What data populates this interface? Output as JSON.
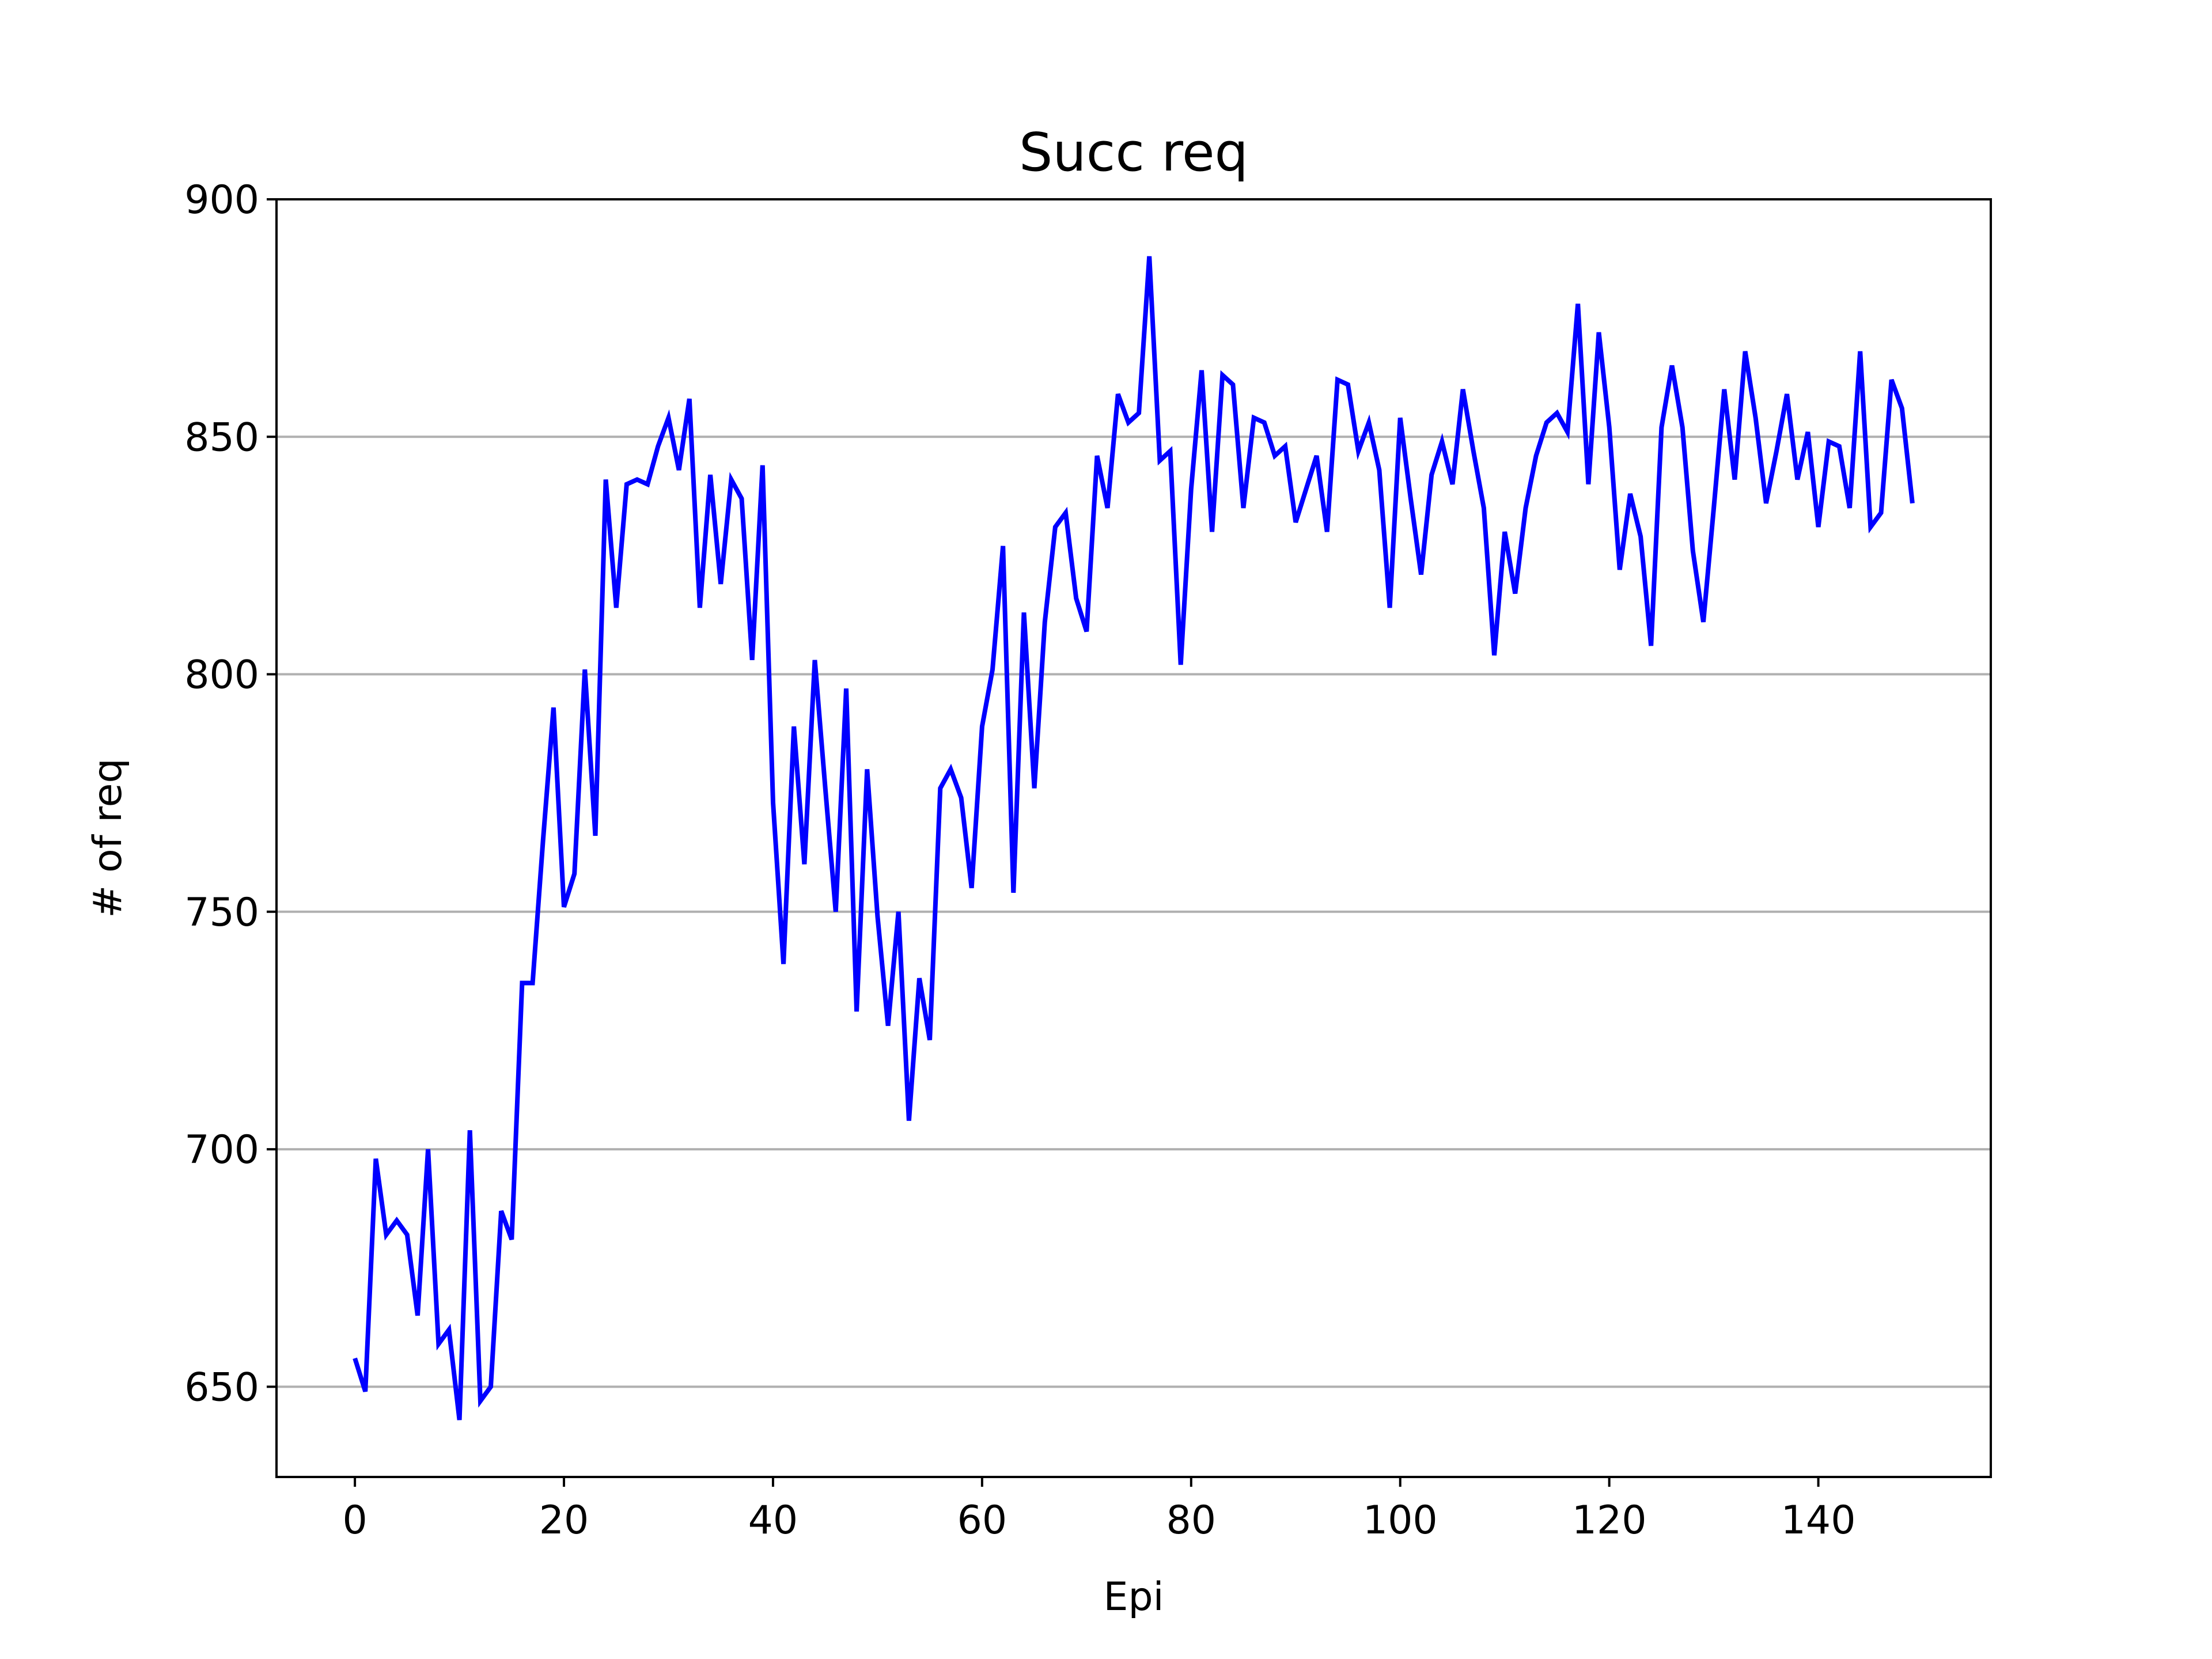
{
  "colors": {
    "line": "#0000ff",
    "grid": "#b0b0b0",
    "axes": "#000000",
    "background": "#ffffff"
  },
  "chart_data": {
    "type": "line",
    "title": "Succ req",
    "xlabel": "Epi",
    "ylabel": "# of req",
    "xlim": [
      -7.5,
      156.5
    ],
    "ylim": [
      631,
      900
    ],
    "xticks": [
      0,
      20,
      40,
      60,
      80,
      100,
      120,
      140
    ],
    "xtick_labels": [
      "0",
      "20",
      "40",
      "60",
      "80",
      "100",
      "120",
      "140"
    ],
    "yticks": [
      650,
      700,
      750,
      800,
      850,
      900
    ],
    "ytick_labels": [
      "650",
      "700",
      "750",
      "800",
      "850",
      "900"
    ],
    "grid": "horizontal",
    "legend": "none",
    "series": [
      {
        "color": "#0000ff",
        "x": [
          0,
          1,
          2,
          3,
          4,
          5,
          6,
          7,
          8,
          9,
          10,
          11,
          12,
          13,
          14,
          15,
          16,
          17,
          18,
          19,
          20,
          21,
          22,
          23,
          24,
          25,
          26,
          27,
          28,
          29,
          30,
          31,
          32,
          33,
          34,
          35,
          36,
          37,
          38,
          39,
          40,
          41,
          42,
          43,
          44,
          45,
          46,
          47,
          48,
          49,
          50,
          51,
          52,
          53,
          54,
          55,
          56,
          57,
          58,
          59,
          60,
          61,
          62,
          63,
          64,
          65,
          66,
          67,
          68,
          69,
          70,
          71,
          72,
          73,
          74,
          75,
          76,
          77,
          78,
          79,
          80,
          81,
          82,
          83,
          84,
          85,
          86,
          87,
          88,
          89,
          90,
          91,
          92,
          93,
          94,
          95,
          96,
          97,
          98,
          99,
          100,
          101,
          102,
          103,
          104,
          105,
          106,
          107,
          108,
          109,
          110,
          111,
          112,
          113,
          114,
          115,
          116,
          117,
          118,
          119,
          120,
          121,
          122,
          123,
          124,
          125,
          126,
          127,
          128,
          129,
          130,
          131,
          132,
          133,
          134,
          135,
          136,
          137,
          138,
          139,
          140,
          141,
          142,
          143,
          144,
          145,
          146,
          147,
          148,
          149
        ],
        "values": [
          656,
          649,
          698,
          682,
          685,
          682,
          665,
          700,
          659,
          662,
          643,
          704,
          647,
          650,
          687,
          681,
          735,
          735,
          765,
          793,
          751,
          758,
          801,
          766,
          841,
          814,
          840,
          841,
          840,
          848,
          854,
          843,
          858,
          814,
          842,
          819,
          841,
          837,
          803,
          844,
          773,
          739,
          789,
          760,
          803,
          776,
          750,
          797,
          729,
          780,
          749,
          726,
          750,
          706,
          736,
          723,
          776,
          780,
          774,
          755,
          789,
          801,
          827,
          754,
          813,
          776,
          811,
          831,
          834,
          816,
          809,
          846,
          835,
          859,
          853,
          855,
          888,
          845,
          847,
          802,
          839,
          864,
          830,
          863,
          861,
          835,
          854,
          853,
          846,
          848,
          832,
          839,
          846,
          830,
          862,
          861,
          847,
          853,
          843,
          814,
          854,
          837,
          821,
          842,
          849,
          840,
          860,
          847,
          835,
          804,
          830,
          817,
          835,
          846,
          853,
          855,
          851,
          878,
          840,
          872,
          852,
          822,
          838,
          829,
          806,
          852,
          865,
          852,
          826,
          811,
          835,
          860,
          841,
          868,
          854,
          836,
          847,
          859,
          841,
          851,
          831,
          849,
          848,
          835,
          868,
          831,
          834,
          862,
          856,
          836
        ]
      }
    ]
  }
}
